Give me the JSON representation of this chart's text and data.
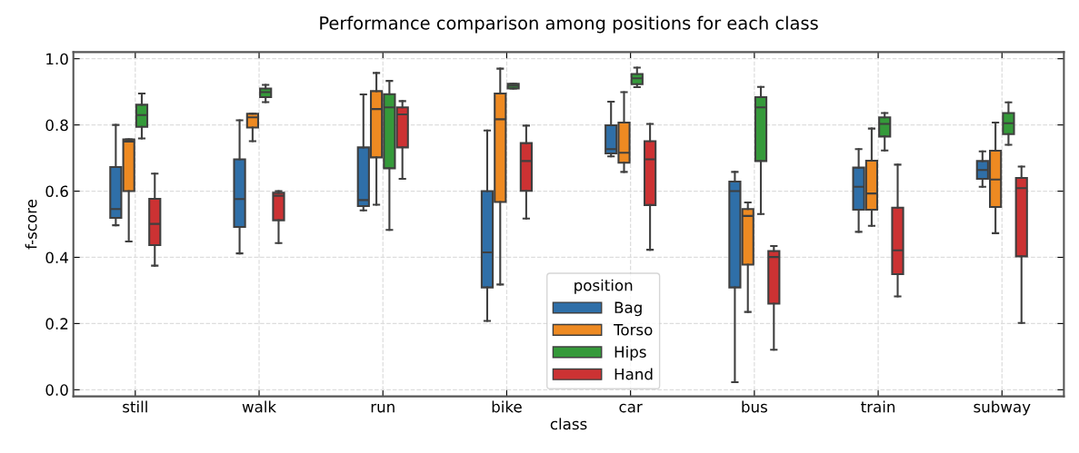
{
  "chart_data": {
    "type": "box",
    "title": "Performance comparison among positions for each class",
    "xlabel": "class",
    "ylabel": "f-score",
    "legend_title": "position",
    "legend": "bottom",
    "grid": true,
    "categories": [
      "still",
      "walk",
      "run",
      "bike",
      "car",
      "bus",
      "train",
      "subway"
    ],
    "ylim": [
      -0.02,
      1.02
    ],
    "yticks": [
      {
        "value": 0,
        "label": "0.0"
      },
      {
        "value": 0.2,
        "label": "0.2"
      },
      {
        "value": 0.4,
        "label": "0.4"
      },
      {
        "value": 0.6,
        "label": "0.6"
      },
      {
        "value": 0.8,
        "label": "0.8"
      },
      {
        "value": 1,
        "label": "1.0"
      }
    ],
    "series": [
      {
        "name": "Bag",
        "color": "#2f6fa8",
        "boxes": [
          {
            "low": 0.497,
            "q1": 0.519,
            "median": 0.546,
            "q3": 0.673,
            "high": 0.8
          },
          {
            "low": 0.412,
            "q1": 0.492,
            "median": 0.576,
            "q3": 0.696,
            "high": 0.814
          },
          {
            "low": 0.542,
            "q1": 0.555,
            "median": 0.573,
            "q3": 0.732,
            "high": 0.892
          },
          {
            "low": 0.208,
            "q1": 0.309,
            "median": 0.415,
            "q3": 0.6,
            "high": 0.783
          },
          {
            "low": 0.705,
            "q1": 0.714,
            "median": 0.727,
            "q3": 0.799,
            "high": 0.87
          },
          {
            "low": 0.023,
            "q1": 0.309,
            "median": 0.6,
            "q3": 0.629,
            "high": 0.658
          },
          {
            "low": 0.477,
            "q1": 0.544,
            "median": 0.613,
            "q3": 0.671,
            "high": 0.727
          },
          {
            "low": 0.613,
            "q1": 0.637,
            "median": 0.664,
            "q3": 0.691,
            "high": 0.72
          }
        ]
      },
      {
        "name": "Torso",
        "color": "#ee8a22",
        "boxes": [
          {
            "low": 0.448,
            "q1": 0.6,
            "median": 0.75,
            "q3": 0.756,
            "high": 0.756
          },
          {
            "low": 0.751,
            "q1": 0.792,
            "median": 0.823,
            "q3": 0.834,
            "high": 0.834
          },
          {
            "low": 0.559,
            "q1": 0.702,
            "median": 0.848,
            "q3": 0.902,
            "high": 0.957
          },
          {
            "low": 0.318,
            "q1": 0.567,
            "median": 0.817,
            "q3": 0.895,
            "high": 0.97
          },
          {
            "low": 0.658,
            "q1": 0.686,
            "median": 0.716,
            "q3": 0.807,
            "high": 0.899
          },
          {
            "low": 0.235,
            "q1": 0.378,
            "median": 0.525,
            "q3": 0.546,
            "high": 0.566
          },
          {
            "low": 0.495,
            "q1": 0.544,
            "median": 0.593,
            "q3": 0.692,
            "high": 0.789
          },
          {
            "low": 0.473,
            "q1": 0.552,
            "median": 0.635,
            "q3": 0.722,
            "high": 0.807
          }
        ]
      },
      {
        "name": "Hips",
        "color": "#359a3a",
        "boxes": [
          {
            "low": 0.759,
            "q1": 0.794,
            "median": 0.83,
            "q3": 0.861,
            "high": 0.895
          },
          {
            "low": 0.869,
            "q1": 0.884,
            "median": 0.899,
            "q3": 0.91,
            "high": 0.921
          },
          {
            "low": 0.483,
            "q1": 0.669,
            "median": 0.853,
            "q3": 0.893,
            "high": 0.933
          },
          {
            "low": 0.91,
            "q1": 0.91,
            "median": 0.918,
            "q3": 0.924,
            "high": 0.924
          },
          {
            "low": 0.914,
            "q1": 0.923,
            "median": 0.941,
            "q3": 0.954,
            "high": 0.973
          },
          {
            "low": 0.531,
            "q1": 0.691,
            "median": 0.853,
            "q3": 0.884,
            "high": 0.915
          },
          {
            "low": 0.723,
            "q1": 0.765,
            "median": 0.803,
            "q3": 0.823,
            "high": 0.836
          },
          {
            "low": 0.74,
            "q1": 0.772,
            "median": 0.805,
            "q3": 0.836,
            "high": 0.868
          }
        ]
      },
      {
        "name": "Hand",
        "color": "#cc3233",
        "boxes": [
          {
            "low": 0.375,
            "q1": 0.437,
            "median": 0.501,
            "q3": 0.577,
            "high": 0.653
          },
          {
            "low": 0.443,
            "q1": 0.512,
            "median": 0.586,
            "q3": 0.595,
            "high": 0.6
          },
          {
            "low": 0.637,
            "q1": 0.732,
            "median": 0.832,
            "q3": 0.853,
            "high": 0.872
          },
          {
            "low": 0.517,
            "q1": 0.601,
            "median": 0.691,
            "q3": 0.745,
            "high": 0.798
          },
          {
            "low": 0.423,
            "q1": 0.558,
            "median": 0.696,
            "q3": 0.751,
            "high": 0.803
          },
          {
            "low": 0.121,
            "q1": 0.26,
            "median": 0.401,
            "q3": 0.419,
            "high": 0.434
          },
          {
            "low": 0.282,
            "q1": 0.349,
            "median": 0.421,
            "q3": 0.55,
            "high": 0.68
          },
          {
            "low": 0.202,
            "q1": 0.403,
            "median": 0.609,
            "q3": 0.64,
            "high": 0.674
          }
        ]
      }
    ]
  }
}
